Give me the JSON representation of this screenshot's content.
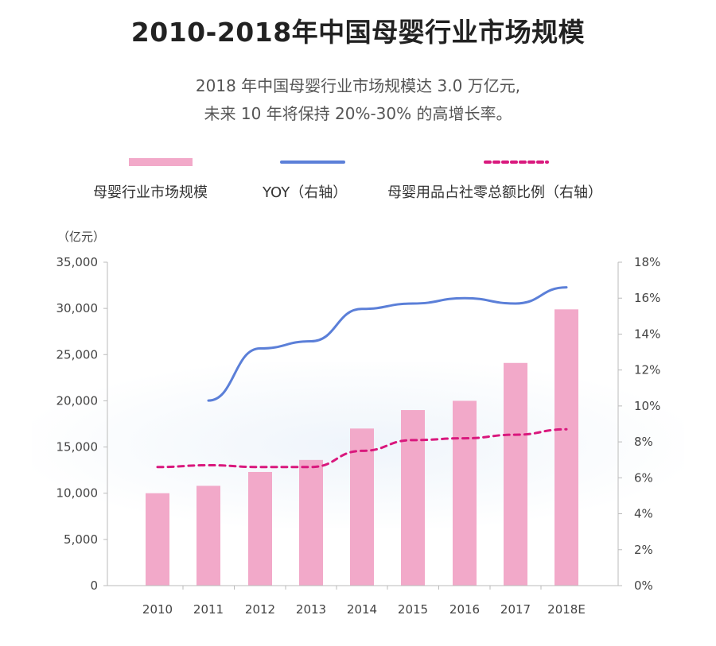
{
  "title": "2010-2018年中国母婴行业市场规模",
  "subtitle_lines": [
    "2018 年中国母婴行业市场规模达 3.0 万亿元,",
    "未来 10 年将保持 20%-30% 的高增长率。"
  ],
  "legend": {
    "bar_label": "母婴行业市场规模",
    "yoy_label": "YOY（右轴）",
    "ratio_label": "母婴用品占社零总额比例（右轴）"
  },
  "colors": {
    "bar": "#f2a9c9",
    "yoy_line": "#5b7fd8",
    "ratio_line": "#d9187d",
    "axis": "#bbbbbb"
  },
  "chart_data": {
    "type": "bar",
    "categories": [
      "2010",
      "2011",
      "2012",
      "2013",
      "2014",
      "2015",
      "2016",
      "2017",
      "2018E"
    ],
    "left_axis": {
      "unit": "（亿元）",
      "ticks": [
        "0",
        "5,000",
        "10,000",
        "15,000",
        "20,000",
        "25,000",
        "30,000",
        "35,000"
      ],
      "ylim": [
        0,
        35000
      ]
    },
    "right_axis": {
      "ticks": [
        "0%",
        "2%",
        "4%",
        "6%",
        "8%",
        "10%",
        "12%",
        "14%",
        "16%",
        "18%"
      ],
      "ylim": [
        0,
        18
      ]
    },
    "series": [
      {
        "name": "母婴行业市场规模",
        "type": "bar",
        "axis": "left",
        "values": [
          10000,
          10800,
          12300,
          13600,
          17000,
          19000,
          20000,
          24100,
          29900
        ]
      },
      {
        "name": "YOY（右轴）",
        "type": "line",
        "axis": "right",
        "values": [
          null,
          10.3,
          13.2,
          13.6,
          15.4,
          15.7,
          16.0,
          15.7,
          16.6
        ]
      },
      {
        "name": "母婴用品占社零总额比例（右轴）",
        "type": "line-dashed",
        "axis": "right",
        "values": [
          6.6,
          6.7,
          6.6,
          6.6,
          7.5,
          8.1,
          8.2,
          8.4,
          8.7
        ]
      }
    ]
  }
}
